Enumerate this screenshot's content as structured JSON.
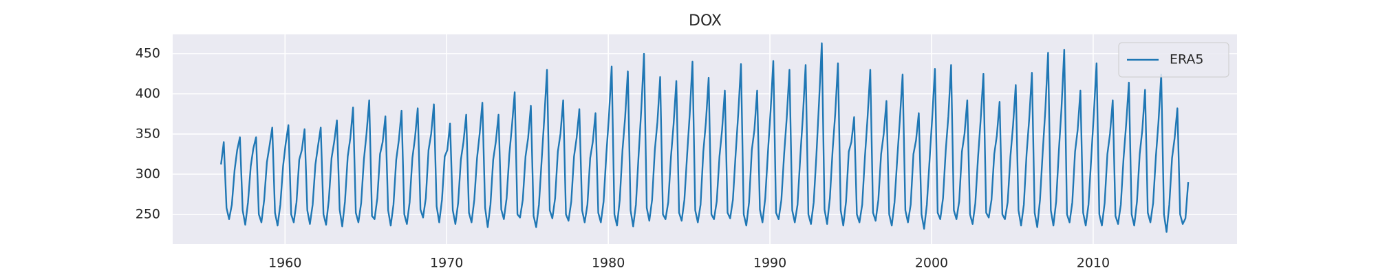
{
  "chart_data": {
    "type": "line",
    "title": "DOX",
    "x": [
      1956.04,
      1956.21,
      1956.38,
      1956.54,
      1956.71,
      1956.88,
      1957.04,
      1957.21,
      1957.38,
      1957.54,
      1957.71,
      1957.88,
      1958.04,
      1958.21,
      1958.38,
      1958.54,
      1958.71,
      1958.88,
      1959.04,
      1959.21,
      1959.38,
      1959.54,
      1959.71,
      1959.88,
      1960.04,
      1960.21,
      1960.38,
      1960.54,
      1960.71,
      1960.88,
      1961.04,
      1961.21,
      1961.38,
      1961.54,
      1961.71,
      1961.88,
      1962.04,
      1962.21,
      1962.38,
      1962.54,
      1962.71,
      1962.88,
      1963.04,
      1963.21,
      1963.38,
      1963.54,
      1963.71,
      1963.88,
      1964.04,
      1964.21,
      1964.38,
      1964.54,
      1964.71,
      1964.88,
      1965.04,
      1965.21,
      1965.38,
      1965.54,
      1965.71,
      1965.88,
      1966.04,
      1966.21,
      1966.38,
      1966.54,
      1966.71,
      1966.88,
      1967.04,
      1967.21,
      1967.38,
      1967.54,
      1967.71,
      1967.88,
      1968.04,
      1968.21,
      1968.38,
      1968.54,
      1968.71,
      1968.88,
      1969.04,
      1969.21,
      1969.38,
      1969.54,
      1969.71,
      1969.88,
      1970.04,
      1970.21,
      1970.38,
      1970.54,
      1970.71,
      1970.88,
      1971.04,
      1971.21,
      1971.38,
      1971.54,
      1971.71,
      1971.88,
      1972.04,
      1972.21,
      1972.38,
      1972.54,
      1972.71,
      1972.88,
      1973.04,
      1973.21,
      1973.38,
      1973.54,
      1973.71,
      1973.88,
      1974.04,
      1974.21,
      1974.38,
      1974.54,
      1974.71,
      1974.88,
      1975.04,
      1975.21,
      1975.38,
      1975.54,
      1975.71,
      1975.88,
      1976.04,
      1976.21,
      1976.38,
      1976.54,
      1976.71,
      1976.88,
      1977.04,
      1977.21,
      1977.38,
      1977.54,
      1977.71,
      1977.88,
      1978.04,
      1978.21,
      1978.38,
      1978.54,
      1978.71,
      1978.88,
      1979.04,
      1979.21,
      1979.38,
      1979.54,
      1979.71,
      1979.88,
      1980.04,
      1980.21,
      1980.38,
      1980.54,
      1980.71,
      1980.88,
      1981.04,
      1981.21,
      1981.38,
      1981.54,
      1981.71,
      1981.88,
      1982.04,
      1982.21,
      1982.38,
      1982.54,
      1982.71,
      1982.88,
      1983.04,
      1983.21,
      1983.38,
      1983.54,
      1983.71,
      1983.88,
      1984.04,
      1984.21,
      1984.38,
      1984.54,
      1984.71,
      1984.88,
      1985.04,
      1985.21,
      1985.38,
      1985.54,
      1985.71,
      1985.88,
      1986.04,
      1986.21,
      1986.38,
      1986.54,
      1986.71,
      1986.88,
      1987.04,
      1987.21,
      1987.38,
      1987.54,
      1987.71,
      1987.88,
      1988.04,
      1988.21,
      1988.38,
      1988.54,
      1988.71,
      1988.88,
      1989.04,
      1989.21,
      1989.38,
      1989.54,
      1989.71,
      1989.88,
      1990.04,
      1990.21,
      1990.38,
      1990.54,
      1990.71,
      1990.88,
      1991.04,
      1991.21,
      1991.38,
      1991.54,
      1991.71,
      1991.88,
      1992.04,
      1992.21,
      1992.38,
      1992.54,
      1992.71,
      1992.88,
      1993.04,
      1993.21,
      1993.38,
      1993.54,
      1993.71,
      1993.88,
      1994.04,
      1994.21,
      1994.38,
      1994.54,
      1994.71,
      1994.88,
      1995.04,
      1995.21,
      1995.38,
      1995.54,
      1995.71,
      1995.88,
      1996.04,
      1996.21,
      1996.38,
      1996.54,
      1996.71,
      1996.88,
      1997.04,
      1997.21,
      1997.38,
      1997.54,
      1997.71,
      1997.88,
      1998.04,
      1998.21,
      1998.38,
      1998.54,
      1998.71,
      1998.88,
      1999.04,
      1999.21,
      1999.38,
      1999.54,
      1999.71,
      1999.88,
      2000.04,
      2000.21,
      2000.38,
      2000.54,
      2000.71,
      2000.88,
      2001.04,
      2001.21,
      2001.38,
      2001.54,
      2001.71,
      2001.88,
      2002.04,
      2002.21,
      2002.38,
      2002.54,
      2002.71,
      2002.88,
      2003.04,
      2003.21,
      2003.38,
      2003.54,
      2003.71,
      2003.88,
      2004.04,
      2004.21,
      2004.38,
      2004.54,
      2004.71,
      2004.88,
      2005.04,
      2005.21,
      2005.38,
      2005.54,
      2005.71,
      2005.88,
      2006.04,
      2006.21,
      2006.38,
      2006.54,
      2006.71,
      2006.88,
      2007.04,
      2007.21,
      2007.38,
      2007.54,
      2007.71,
      2007.88,
      2008.04,
      2008.21,
      2008.38,
      2008.54,
      2008.71,
      2008.88,
      2009.04,
      2009.21,
      2009.38,
      2009.54,
      2009.71,
      2009.88,
      2010.04,
      2010.21,
      2010.38,
      2010.54,
      2010.71,
      2010.88,
      2011.04,
      2011.21,
      2011.38,
      2011.54,
      2011.71,
      2011.88,
      2012.04,
      2012.21,
      2012.38,
      2012.54,
      2012.71,
      2012.88,
      2013.04,
      2013.21,
      2013.38,
      2013.54,
      2013.71,
      2013.88,
      2014.04,
      2014.21,
      2014.38,
      2014.54,
      2014.71,
      2014.88,
      2015.04,
      2015.21,
      2015.38,
      2015.54,
      2015.71,
      2015.88
    ],
    "series": [
      {
        "name": "ERA5",
        "color": "#1f77b4",
        "values": [
          312,
          340,
          258,
          244,
          262,
          305,
          330,
          346,
          255,
          237,
          265,
          310,
          332,
          346,
          250,
          240,
          268,
          315,
          335,
          358,
          252,
          236,
          262,
          310,
          338,
          361,
          250,
          240,
          265,
          318,
          330,
          356,
          255,
          238,
          262,
          312,
          335,
          358,
          250,
          237,
          268,
          320,
          340,
          367,
          256,
          235,
          266,
          322,
          345,
          383,
          252,
          240,
          264,
          318,
          350,
          392,
          248,
          244,
          270,
          325,
          340,
          372,
          255,
          236,
          262,
          318,
          342,
          379,
          250,
          238,
          265,
          320,
          345,
          382,
          256,
          246,
          270,
          330,
          350,
          387,
          260,
          240,
          268,
          322,
          330,
          363,
          255,
          238,
          264,
          318,
          340,
          374,
          252,
          240,
          268,
          320,
          350,
          389,
          258,
          234,
          262,
          318,
          340,
          374,
          256,
          244,
          270,
          325,
          360,
          402,
          250,
          246,
          268,
          322,
          345,
          385,
          248,
          234,
          262,
          318,
          370,
          430,
          255,
          245,
          270,
          328,
          350,
          392,
          250,
          242,
          266,
          322,
          345,
          381,
          255,
          240,
          262,
          320,
          340,
          376,
          252,
          240,
          266,
          325,
          372,
          434,
          250,
          236,
          268,
          330,
          370,
          428,
          255,
          235,
          262,
          325,
          380,
          450,
          258,
          242,
          268,
          330,
          365,
          421,
          250,
          244,
          265,
          322,
          362,
          416,
          252,
          242,
          268,
          325,
          375,
          440,
          255,
          240,
          262,
          328,
          365,
          420,
          250,
          244,
          266,
          322,
          355,
          404,
          252,
          245,
          268,
          325,
          375,
          437,
          250,
          236,
          265,
          330,
          355,
          404,
          256,
          240,
          270,
          328,
          378,
          441,
          252,
          244,
          268,
          325,
          370,
          430,
          255,
          240,
          262,
          322,
          372,
          436,
          250,
          238,
          265,
          325,
          390,
          463,
          256,
          238,
          270,
          330,
          375,
          438,
          255,
          236,
          266,
          328,
          340,
          371,
          250,
          240,
          262,
          322,
          370,
          430,
          252,
          242,
          268,
          325,
          350,
          391,
          250,
          236,
          265,
          320,
          368,
          424,
          255,
          240,
          262,
          325,
          342,
          376,
          250,
          232,
          262,
          318,
          370,
          431,
          252,
          244,
          270,
          330,
          372,
          436,
          255,
          244,
          266,
          328,
          350,
          392,
          250,
          238,
          264,
          322,
          368,
          425,
          252,
          246,
          268,
          325,
          348,
          390,
          250,
          244,
          265,
          322,
          360,
          411,
          255,
          236,
          262,
          325,
          368,
          426,
          252,
          234,
          268,
          328,
          380,
          451,
          255,
          236,
          266,
          330,
          382,
          455,
          250,
          240,
          265,
          328,
          355,
          404,
          252,
          236,
          262,
          320,
          375,
          438,
          250,
          236,
          264,
          325,
          350,
          392,
          248,
          238,
          262,
          320,
          362,
          414,
          250,
          236,
          266,
          325,
          355,
          405,
          252,
          240,
          264,
          322,
          365,
          424,
          250,
          228,
          262,
          320,
          345,
          382,
          250,
          238,
          245,
          290
        ]
      }
    ],
    "xlim": [
      1953.05,
      2018.9
    ],
    "ylim": [
      213,
      474
    ],
    "xticks": [
      1960,
      1970,
      1980,
      1990,
      2000,
      2010
    ],
    "yticks": [
      250,
      300,
      350,
      400,
      450
    ],
    "grid": true,
    "legend": "upper right"
  }
}
